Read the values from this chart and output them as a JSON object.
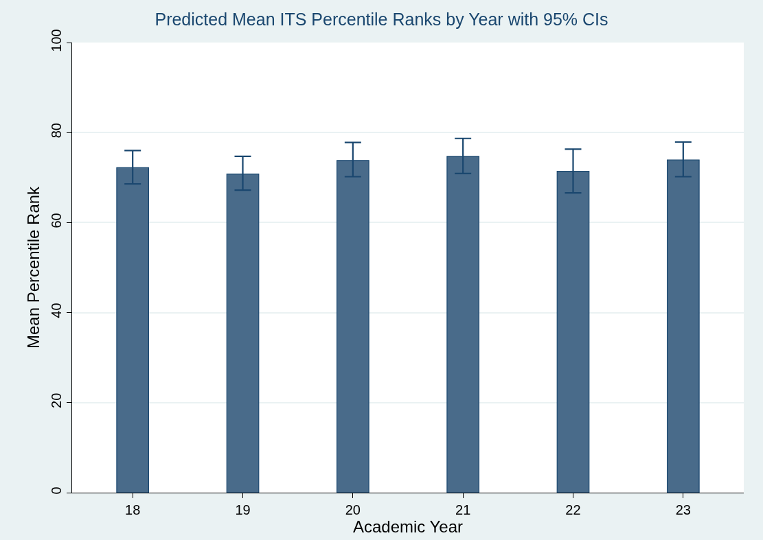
{
  "chart_data": {
    "type": "bar",
    "title": "Predicted Mean ITS Percentile Ranks by Year with 95% CIs",
    "xlabel": "Academic Year",
    "ylabel": "Mean Percentile Rank",
    "categories": [
      "18",
      "19",
      "20",
      "21",
      "22",
      "23"
    ],
    "values": [
      72.2,
      70.8,
      73.8,
      74.7,
      71.4,
      73.9
    ],
    "errors": [
      [
        68.6,
        76.0
      ],
      [
        67.2,
        74.7
      ],
      [
        70.2,
        77.8
      ],
      [
        70.9,
        78.7
      ],
      [
        66.6,
        76.3
      ],
      [
        70.2,
        77.9
      ]
    ],
    "color": "#496b8a",
    "ylim": [
      0,
      100
    ],
    "yticks": [
      0,
      20,
      40,
      60,
      80,
      100
    ],
    "grid": "y"
  }
}
